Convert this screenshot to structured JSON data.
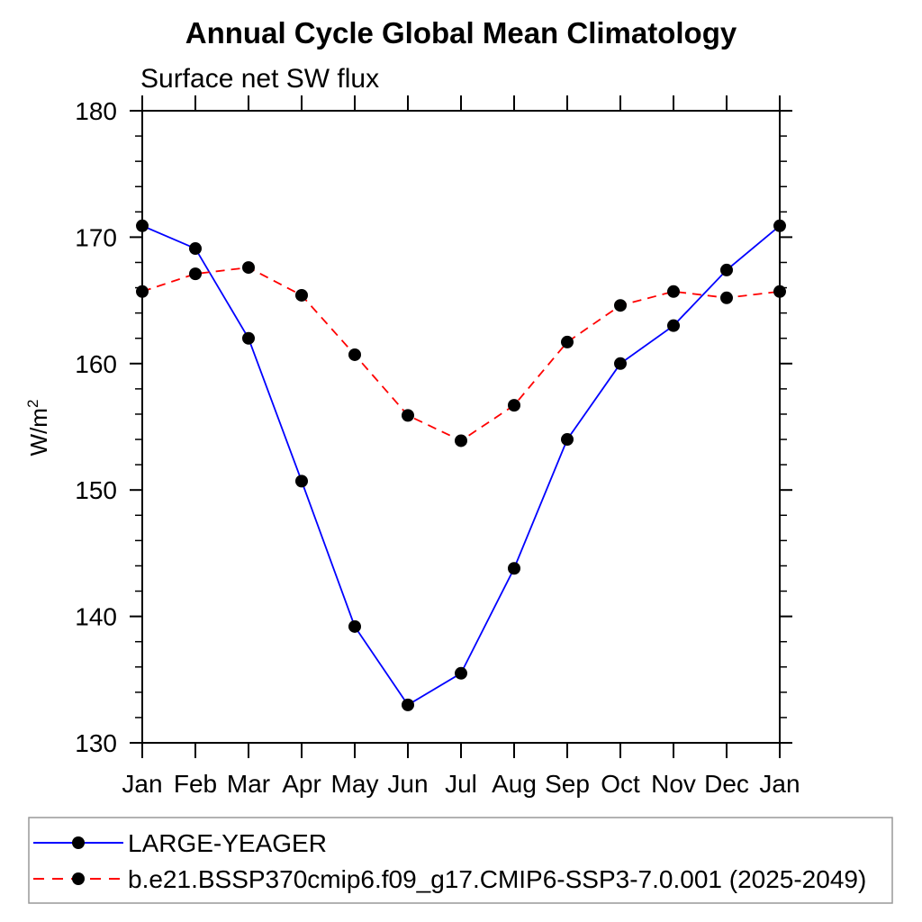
{
  "chart_data": {
    "type": "line",
    "title": "Annual Cycle Global Mean Climatology",
    "subtitle": "Surface net SW flux",
    "ylabel": "W/m²",
    "xlabel": "",
    "categories": [
      "Jan",
      "Feb",
      "Mar",
      "Apr",
      "May",
      "Jun",
      "Jul",
      "Aug",
      "Sep",
      "Oct",
      "Nov",
      "Dec",
      "Jan"
    ],
    "ylim": [
      130,
      180
    ],
    "y_major_ticks": [
      130,
      140,
      150,
      160,
      170,
      180
    ],
    "y_minor_step": 2,
    "grid": false,
    "boxed_axes": true,
    "tick_direction": "outward",
    "legend_position": "bottom-left-boxed",
    "marker_color": "#000000",
    "series": [
      {
        "name": "LARGE-YEAGER",
        "color": "#0000ff",
        "line_style": "solid",
        "marker": "filled-circle",
        "values": [
          170.9,
          169.1,
          162.0,
          150.7,
          139.2,
          133.0,
          135.5,
          143.8,
          154.0,
          160.0,
          163.0,
          167.4,
          170.9
        ]
      },
      {
        "name": "b.e21.BSSP370cmip6.f09_g17.CMIP6-SSP3-7.0.001 (2025-2049)",
        "color": "#ff0000",
        "line_style": "dashed",
        "marker": "filled-circle",
        "values": [
          165.7,
          167.1,
          167.6,
          165.4,
          160.7,
          155.9,
          153.9,
          156.7,
          161.7,
          164.6,
          165.7,
          165.2,
          165.7
        ]
      }
    ]
  }
}
